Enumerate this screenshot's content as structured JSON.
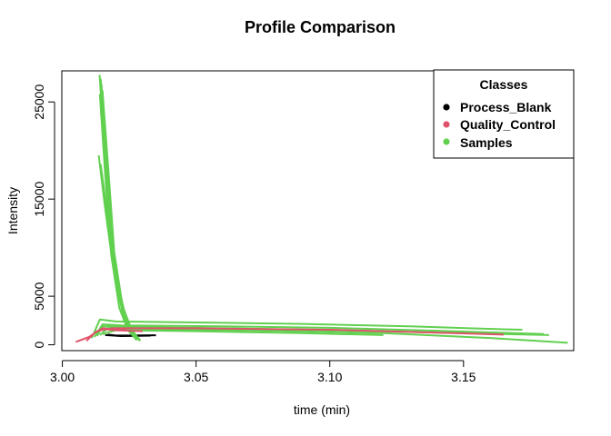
{
  "chart_data": {
    "type": "line",
    "title": "Profile Comparison",
    "xlabel": "time (min)",
    "ylabel": "Intensity",
    "xlim": [
      2.9998,
      3.1912
    ],
    "ylim": [
      -600,
      28200
    ],
    "xticks": [
      3.0,
      3.05,
      3.1,
      3.15
    ],
    "xtick_labels": [
      "3.00",
      "3.05",
      "3.10",
      "3.15"
    ],
    "yticks": [
      0,
      5000,
      15000,
      25000
    ],
    "ytick_labels": [
      "0",
      "5000",
      "15000",
      "25000"
    ],
    "grid": false,
    "legend": {
      "title": "Classes",
      "position": "top-right",
      "entries": [
        {
          "name": "Process_Blank",
          "color": "#000000"
        },
        {
          "name": "Quality_Control",
          "color": "#DF536B"
        },
        {
          "name": "Samples",
          "color": "#61D04F"
        }
      ]
    },
    "series": [
      {
        "class": "Process_Blank",
        "color": "#000000",
        "points": [
          [
            3.017,
            1050
          ],
          [
            3.02,
            950
          ],
          [
            3.025,
            950
          ],
          [
            3.03,
            960
          ],
          [
            3.035,
            980
          ]
        ]
      },
      {
        "class": "Process_Blank",
        "color": "#000000",
        "points": [
          [
            3.016,
            1000
          ],
          [
            3.022,
            900
          ],
          [
            3.028,
            920
          ],
          [
            3.033,
            940
          ]
        ]
      },
      {
        "class": "Quality_Control",
        "color": "#DF536B",
        "points": [
          [
            3.005,
            300
          ],
          [
            3.01,
            800
          ],
          [
            3.013,
            1400
          ],
          [
            3.016,
            1600
          ],
          [
            3.02,
            1500
          ],
          [
            3.025,
            1450
          ],
          [
            3.03,
            1400
          ]
        ]
      },
      {
        "class": "Quality_Control",
        "color": "#DF536B",
        "points": [
          [
            3.009,
            400
          ],
          [
            3.012,
            1200
          ],
          [
            3.015,
            1700
          ],
          [
            3.019,
            1600
          ],
          [
            3.024,
            1500
          ]
        ]
      },
      {
        "class": "Quality_Control",
        "color": "#DF536B",
        "points": [
          [
            3.018,
            1700
          ],
          [
            3.05,
            1700
          ],
          [
            3.1,
            1550
          ],
          [
            3.14,
            1250
          ],
          [
            3.165,
            1050
          ]
        ]
      },
      {
        "class": "Samples",
        "color": "#61D04F",
        "points": [
          [
            3.0139,
            27800
          ],
          [
            3.0158,
            20000
          ],
          [
            3.018,
            11000
          ],
          [
            3.021,
            5000
          ],
          [
            3.024,
            2000
          ],
          [
            3.0275,
            600
          ]
        ]
      },
      {
        "class": "Samples",
        "color": "#61D04F",
        "points": [
          [
            3.0143,
            27400
          ],
          [
            3.0163,
            19000
          ],
          [
            3.0185,
            10500
          ],
          [
            3.0215,
            4600
          ],
          [
            3.0248,
            1800
          ],
          [
            3.028,
            550
          ]
        ]
      },
      {
        "class": "Samples",
        "color": "#61D04F",
        "points": [
          [
            3.0146,
            26900
          ],
          [
            3.0167,
            18500
          ],
          [
            3.019,
            10000
          ],
          [
            3.022,
            4200
          ],
          [
            3.0252,
            1700
          ],
          [
            3.0284,
            500
          ]
        ]
      },
      {
        "class": "Samples",
        "color": "#61D04F",
        "points": [
          [
            3.015,
            26200
          ],
          [
            3.0172,
            18000
          ],
          [
            3.0194,
            9500
          ],
          [
            3.0225,
            4000
          ],
          [
            3.0258,
            1600
          ],
          [
            3.029,
            450
          ]
        ]
      },
      {
        "class": "Samples",
        "color": "#61D04F",
        "points": [
          [
            3.014,
            25800
          ],
          [
            3.016,
            17500
          ],
          [
            3.0183,
            9200
          ],
          [
            3.0213,
            3800
          ],
          [
            3.0245,
            1500
          ],
          [
            3.0278,
            480
          ]
        ]
      },
      {
        "class": "Samples",
        "color": "#61D04F",
        "points": [
          [
            3.0136,
            19500
          ],
          [
            3.016,
            14000
          ],
          [
            3.019,
            8000
          ],
          [
            3.0225,
            3300
          ],
          [
            3.0262,
            1200
          ],
          [
            3.029,
            500
          ]
        ]
      },
      {
        "class": "Samples",
        "color": "#61D04F",
        "points": [
          [
            3.0143,
            18600
          ],
          [
            3.017,
            13000
          ],
          [
            3.02,
            7000
          ],
          [
            3.0235,
            2800
          ],
          [
            3.0275,
            900
          ],
          [
            3.0292,
            450
          ]
        ]
      },
      {
        "class": "Samples",
        "color": "#61D04F",
        "points": [
          [
            3.0148,
            17600
          ],
          [
            3.0175,
            12000
          ],
          [
            3.0208,
            6200
          ],
          [
            3.024,
            2500
          ],
          [
            3.0278,
            800
          ],
          [
            3.029,
            400
          ]
        ]
      },
      {
        "class": "Samples",
        "color": "#61D04F",
        "points": [
          [
            3.011,
            700
          ],
          [
            3.014,
            2600
          ],
          [
            3.02,
            2400
          ],
          [
            3.05,
            2300
          ],
          [
            3.09,
            2150
          ],
          [
            3.13,
            1900
          ],
          [
            3.165,
            1600
          ],
          [
            3.172,
            1550
          ]
        ]
      },
      {
        "class": "Samples",
        "color": "#61D04F",
        "points": [
          [
            3.012,
            800
          ],
          [
            3.015,
            2100
          ],
          [
            3.022,
            2000
          ],
          [
            3.06,
            1900
          ],
          [
            3.1,
            1750
          ],
          [
            3.14,
            1450
          ],
          [
            3.18,
            1100
          ]
        ]
      },
      {
        "class": "Samples",
        "color": "#61D04F",
        "points": [
          [
            3.013,
            900
          ],
          [
            3.015,
            1900
          ],
          [
            3.02,
            1850
          ],
          [
            3.06,
            1700
          ],
          [
            3.1,
            1500
          ],
          [
            3.15,
            1200
          ],
          [
            3.182,
            1000
          ]
        ]
      },
      {
        "class": "Samples",
        "color": "#61D04F",
        "points": [
          [
            3.014,
            1000
          ],
          [
            3.017,
            1700
          ],
          [
            3.04,
            1600
          ],
          [
            3.08,
            1450
          ],
          [
            3.12,
            1200
          ],
          [
            3.16,
            700
          ],
          [
            3.189,
            200
          ]
        ]
      },
      {
        "class": "Samples",
        "color": "#61D04F",
        "points": [
          [
            3.015,
            1100
          ],
          [
            3.02,
            1500
          ],
          [
            3.05,
            1400
          ],
          [
            3.09,
            1200
          ],
          [
            3.12,
            1000
          ]
        ]
      }
    ]
  }
}
